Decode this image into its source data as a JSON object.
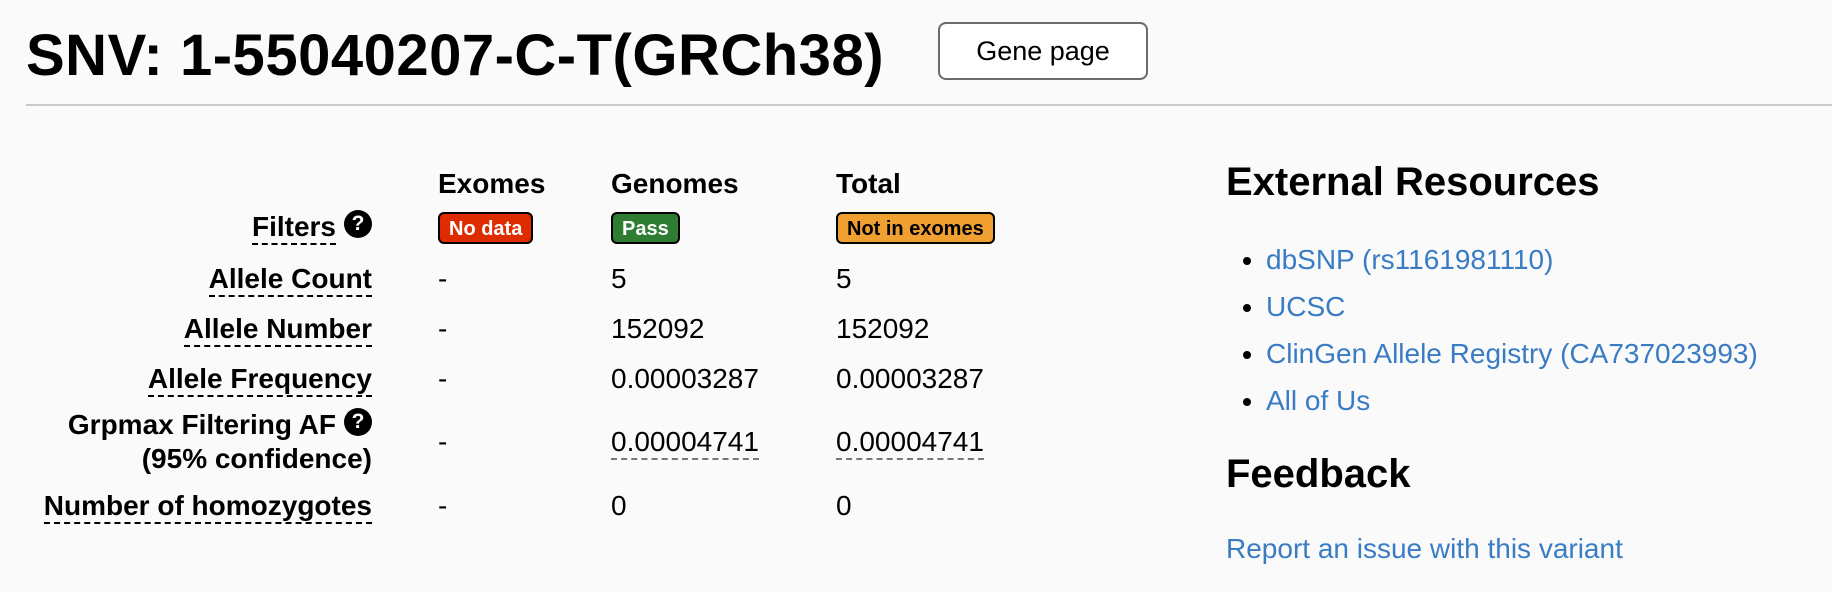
{
  "header": {
    "title": "SNV: 1-55040207-C-T(GRCh38)",
    "gene_page_label": "Gene page"
  },
  "table": {
    "columns": [
      "Exomes",
      "Genomes",
      "Total"
    ],
    "help_glyph": "?",
    "filters": {
      "label": "Filters",
      "exomes": "No data",
      "genomes": "Pass",
      "total": "Not in exomes"
    },
    "rows": [
      {
        "label": "Allele Count",
        "exomes": "-",
        "genomes": "5",
        "total": "5"
      },
      {
        "label": "Allele Number",
        "exomes": "-",
        "genomes": "152092",
        "total": "152092"
      },
      {
        "label": "Allele Frequency",
        "exomes": "-",
        "genomes": "0.00003287",
        "total": "0.00003287"
      },
      {
        "label_line1": "Grpmax Filtering AF",
        "label_line2": "(95% confidence)",
        "exomes": "-",
        "genomes": "0.00004741",
        "total": "0.00004741"
      },
      {
        "label": "Number of homozygotes",
        "exomes": "-",
        "genomes": "0",
        "total": "0"
      }
    ],
    "badge_colors": {
      "no_data": "#dd2c00",
      "pass": "#2e7d32",
      "not_in_exomes": "#f0a030"
    }
  },
  "external_resources": {
    "title": "External Resources",
    "links": [
      "dbSNP (rs1161981110)",
      "UCSC",
      "ClinGen Allele Registry (CA737023993)",
      "All of Us"
    ]
  },
  "feedback": {
    "title": "Feedback",
    "report_link": "Report an issue with this variant"
  },
  "colors": {
    "link": "#3a7cc4",
    "background": "#fafafa"
  }
}
